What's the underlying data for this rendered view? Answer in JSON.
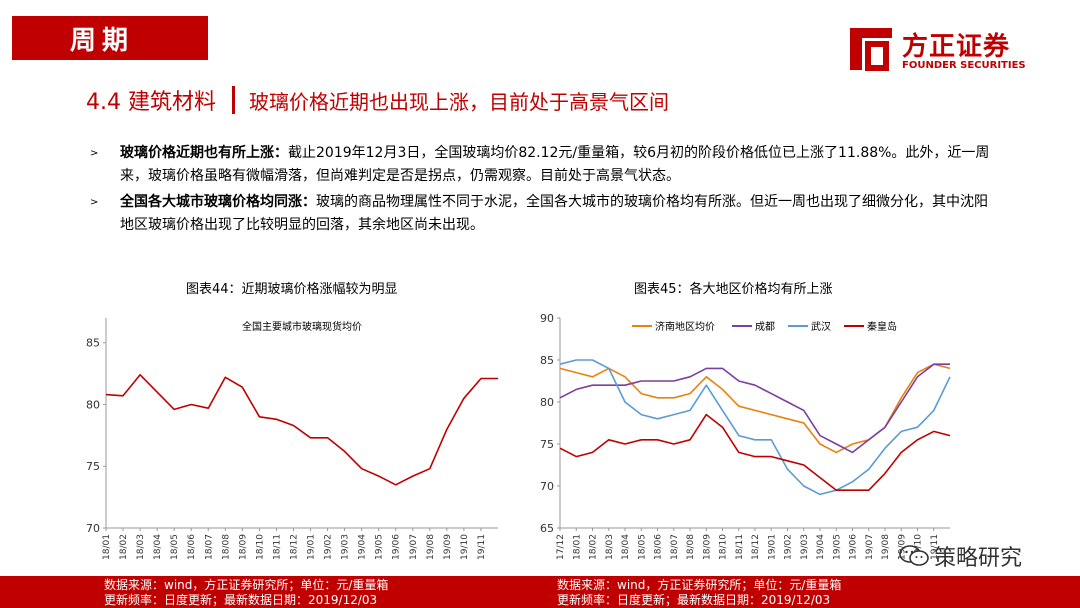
{
  "header": {
    "section_tag": "周期",
    "logo_cn": "方正证券",
    "logo_en": "FOUNDER SECURITIES",
    "title_num": "4.4 建筑材料",
    "title_main": "玻璃价格近期也出现上涨，目前处于高景气区间"
  },
  "bullets": [
    {
      "bold": "玻璃价格近期也有所上涨：",
      "text": "截止2019年12月3日，全国玻璃均价82.12元/重量箱，较6月初的阶段价格低位已上涨了11.88%。此外，近一周来，玻璃价格虽略有微幅滑落，但尚难判定是否是拐点，仍需观察。目前处于高景气状态。"
    },
    {
      "bold": "全国各大城市玻璃价格均同涨：",
      "text": "玻璃的商品物理属性不同于水泥，全国各大城市的玻璃价格均有所涨。但近一周也出现了细微分化，其中沈阳地区玻璃价格出现了比较明显的回落，其余地区尚未出现。"
    }
  ],
  "chart_titles": {
    "left": "图表44：近期玻璃价格涨幅较为明显",
    "right": "图表45：各大地区价格均有所上涨"
  },
  "chart_data": [
    {
      "type": "line",
      "title": "全国主要城市玻璃现货均价",
      "ylim": [
        70,
        87
      ],
      "yticks": [
        70,
        75,
        80,
        85
      ],
      "x_ticks": [
        "18/01",
        "18/02",
        "18/03",
        "18/04",
        "18/05",
        "18/06",
        "18/07",
        "18/08",
        "18/09",
        "18/10",
        "18/11",
        "18/12",
        "19/01",
        "19/02",
        "19/03",
        "19/04",
        "19/05",
        "19/06",
        "19/07",
        "19/08",
        "19/09",
        "19/10",
        "19/11"
      ],
      "color": "#c00000",
      "x": [
        "18/01",
        "18/02",
        "18/03",
        "18/04",
        "18/05",
        "18/06",
        "18/07",
        "18/08",
        "18/09",
        "18/10",
        "18/11",
        "18/12",
        "19/01",
        "19/02",
        "19/03",
        "19/04",
        "19/05",
        "19/06",
        "19/07",
        "19/08",
        "19/09",
        "19/10",
        "19/11",
        "19/12"
      ],
      "values": [
        80.8,
        80.7,
        82.4,
        81.0,
        79.6,
        80.0,
        79.7,
        82.2,
        81.4,
        79.0,
        78.8,
        78.3,
        77.3,
        77.3,
        76.2,
        74.8,
        74.2,
        73.5,
        74.2,
        74.8,
        78.0,
        80.5,
        82.1,
        82.1
      ]
    },
    {
      "type": "line",
      "ylim": [
        65,
        90
      ],
      "yticks": [
        65,
        70,
        75,
        80,
        85,
        90
      ],
      "x_ticks": [
        "17/12",
        "18/01",
        "18/02",
        "18/03",
        "18/04",
        "18/05",
        "18/06",
        "18/07",
        "18/08",
        "18/09",
        "18/10",
        "18/11",
        "18/12",
        "19/01",
        "19/02",
        "19/03",
        "19/04",
        "19/05",
        "19/06",
        "19/07",
        "19/08",
        "19/09",
        "19/10",
        "19/11"
      ],
      "x": [
        "17/12",
        "18/01",
        "18/02",
        "18/03",
        "18/04",
        "18/05",
        "18/06",
        "18/07",
        "18/08",
        "18/09",
        "18/10",
        "18/11",
        "18/12",
        "19/01",
        "19/02",
        "19/03",
        "19/04",
        "19/05",
        "19/06",
        "19/07",
        "19/08",
        "19/09",
        "19/10",
        "19/11",
        "19/12"
      ],
      "legend": "top",
      "series": [
        {
          "name": "济南地区均价",
          "color": "#e8820c",
          "values": [
            84.0,
            83.5,
            83.0,
            84.0,
            83.0,
            81.0,
            80.5,
            80.5,
            81.0,
            83.0,
            81.5,
            79.5,
            79.0,
            78.5,
            78.0,
            77.5,
            75.0,
            74.0,
            75.0,
            75.5,
            77.0,
            80.5,
            83.5,
            84.5,
            84.0
          ]
        },
        {
          "name": "成都",
          "color": "#7b3f9e",
          "values": [
            80.5,
            81.5,
            82.0,
            82.0,
            82.0,
            82.5,
            82.5,
            82.5,
            83.0,
            84.0,
            84.0,
            82.5,
            82.0,
            81.0,
            80.0,
            79.0,
            76.0,
            75.0,
            74.0,
            75.5,
            77.0,
            80.0,
            83.0,
            84.5,
            84.5
          ]
        },
        {
          "name": "武汉",
          "color": "#5b9bd5",
          "values": [
            84.5,
            85.0,
            85.0,
            84.0,
            80.0,
            78.5,
            78.0,
            78.5,
            79.0,
            82.0,
            79.0,
            76.0,
            75.5,
            75.5,
            72.0,
            70.0,
            69.0,
            69.5,
            70.5,
            72.0,
            74.5,
            76.5,
            77.0,
            79.0,
            83.0
          ]
        },
        {
          "name": "秦皇岛",
          "color": "#c00000",
          "values": [
            74.5,
            73.5,
            74.0,
            75.5,
            75.0,
            75.5,
            75.5,
            75.0,
            75.5,
            78.5,
            77.0,
            74.0,
            73.5,
            73.5,
            73.0,
            72.5,
            71.0,
            69.5,
            69.5,
            69.5,
            71.5,
            74.0,
            75.5,
            76.5,
            76.0
          ]
        }
      ]
    }
  ],
  "footer": {
    "left_line1": "数据来源：wind，方正证券研究所；单位：元/重量箱",
    "left_line2": "更新频率：日度更新；最新数据日期：2019/12/03",
    "right_line1": "数据来源：wind，方正证券研究所；单位：元/重量箱",
    "right_line2": "更新频率：日度更新；最新数据日期：2019/12/03"
  },
  "watermark": "策略研究"
}
